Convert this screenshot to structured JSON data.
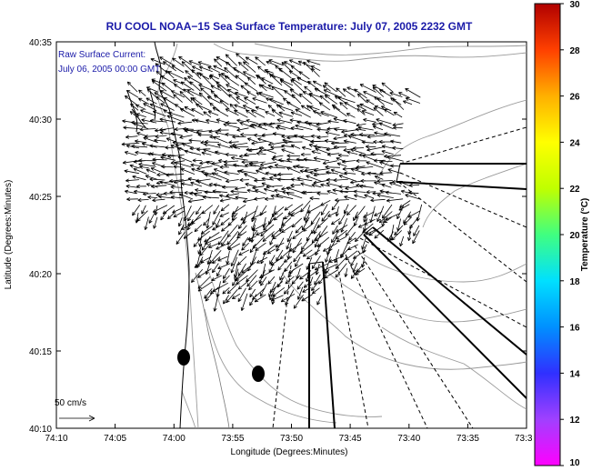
{
  "map": {
    "title": "RU COOL  NOAA−15  Sea Surface Temperature:  July 07, 2005 2232 GMT",
    "annotation_line1": "Raw Surface Current:",
    "annotation_line2": "July 06, 2005 00:00 GMT",
    "scale_label": "50 cm/s",
    "x_axis_label": "Longitude (Degrees:Minutes)",
    "y_axis_label": "Latitude (Degrees:Minutes)",
    "x_ticks": [
      "74:10",
      "74:05",
      "74:00",
      "73:55",
      "73:50",
      "73:45",
      "73:40",
      "73:35",
      "73:3"
    ],
    "y_ticks": [
      "40:35",
      "40:30",
      "40:25",
      "40:20",
      "40:15",
      "40:10"
    ]
  },
  "colorbar": {
    "label": "Temperature (°C)",
    "ticks": [
      "30",
      "28",
      "26",
      "24",
      "22",
      "20",
      "18",
      "16",
      "14",
      "12",
      "10"
    ],
    "colors": [
      "#ff00ff",
      "#a040ff",
      "#3030ff",
      "#0090ff",
      "#00e0ff",
      "#40ff80",
      "#c0ff00",
      "#ffff00",
      "#ffb000",
      "#ff4000",
      "#b00000"
    ]
  }
}
